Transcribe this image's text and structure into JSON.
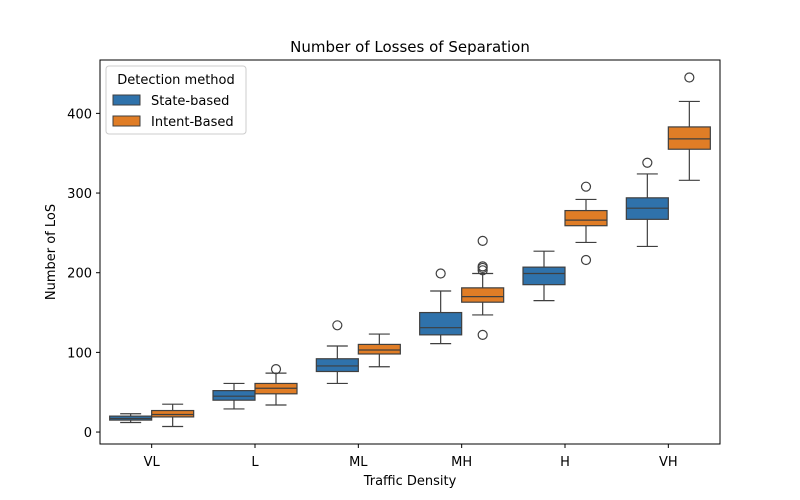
{
  "chart_data": {
    "type": "box",
    "title": "Number of Losses of Separation",
    "xlabel": "Traffic Density",
    "ylabel": "Number of LoS",
    "categories": [
      "VL",
      "L",
      "ML",
      "MH",
      "H",
      "VH"
    ],
    "ylim": [
      -15,
      467
    ],
    "yticks": [
      0,
      100,
      200,
      300,
      400
    ],
    "grid": false,
    "legend": {
      "title": "Detection method",
      "placement": "top-left"
    },
    "series": [
      {
        "name": "State-based",
        "color": "#2f72ab",
        "boxes": [
          {
            "whislo": 12,
            "q1": 15,
            "med": 17,
            "q3": 20,
            "whishi": 23,
            "fliers": []
          },
          {
            "whislo": 29,
            "q1": 40,
            "med": 45,
            "q3": 52,
            "whishi": 61,
            "fliers": []
          },
          {
            "whislo": 61,
            "q1": 76,
            "med": 83,
            "q3": 92,
            "whishi": 108,
            "fliers": [
              134
            ]
          },
          {
            "whislo": 111,
            "q1": 122,
            "med": 131,
            "q3": 150,
            "whishi": 177,
            "fliers": [
              199
            ]
          },
          {
            "whislo": 165,
            "q1": 185,
            "med": 199,
            "q3": 207,
            "whishi": 227,
            "fliers": []
          },
          {
            "whislo": 233,
            "q1": 267,
            "med": 281,
            "q3": 294,
            "whishi": 324,
            "fliers": [
              338
            ]
          }
        ]
      },
      {
        "name": "Intent-Based",
        "color": "#e07d26",
        "boxes": [
          {
            "whislo": 7,
            "q1": 19,
            "med": 22,
            "q3": 27,
            "whishi": 35,
            "fliers": []
          },
          {
            "whislo": 34,
            "q1": 48,
            "med": 55,
            "q3": 61,
            "whishi": 74,
            "fliers": [
              79
            ]
          },
          {
            "whislo": 82,
            "q1": 98,
            "med": 103,
            "q3": 110,
            "whishi": 123,
            "fliers": []
          },
          {
            "whislo": 147,
            "q1": 163,
            "med": 170,
            "q3": 181,
            "whishi": 199,
            "fliers": [
              122,
              203,
              206,
              208,
              240
            ]
          },
          {
            "whislo": 238,
            "q1": 259,
            "med": 266,
            "q3": 278,
            "whishi": 292,
            "fliers": [
              216,
              308
            ]
          },
          {
            "whislo": 316,
            "q1": 355,
            "med": 368,
            "q3": 383,
            "whishi": 415,
            "fliers": [
              445
            ]
          }
        ]
      }
    ]
  }
}
